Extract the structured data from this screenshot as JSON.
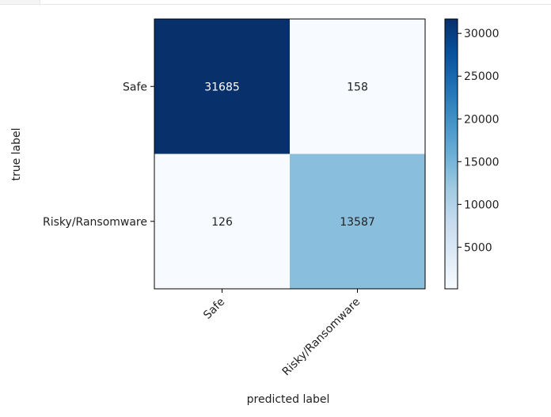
{
  "chart_data": {
    "type": "heatmap",
    "xlabel": "predicted label",
    "ylabel": "true label",
    "x_categories": [
      "Safe",
      "Risky/Ransomware"
    ],
    "y_categories": [
      "Safe",
      "Risky/Ransomware"
    ],
    "values": [
      [
        31685,
        158
      ],
      [
        126,
        13587
      ]
    ],
    "colormap": "Blues",
    "colorbar": {
      "range": [
        126,
        31685
      ],
      "ticks": [
        5000,
        10000,
        15000,
        20000,
        25000,
        30000
      ]
    },
    "colors": {
      "low": "#f7fbff",
      "high": "#08306b",
      "cell_text_light": "#ffffff",
      "cell_text_dark": "#222222"
    }
  }
}
